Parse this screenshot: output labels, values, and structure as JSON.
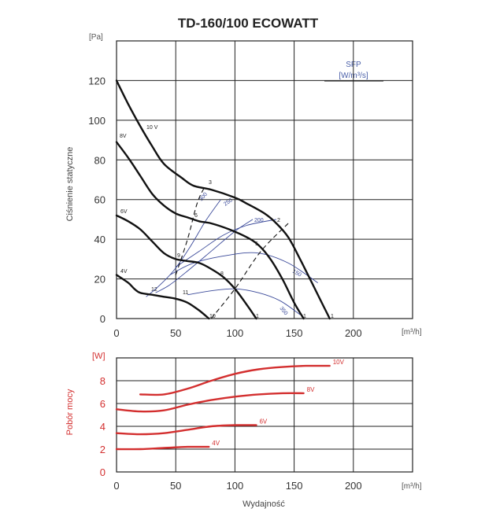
{
  "title": "TD-160/100 ECOWATT",
  "chart_data": [
    {
      "type": "line",
      "name": "pressure",
      "ylabel": "Ciśnienie statyczne",
      "yunit": "[Pa]",
      "xunit": "[m³/h]",
      "xlim": [
        0,
        250
      ],
      "ylim": [
        0,
        140
      ],
      "xticks": [
        0,
        50,
        100,
        150,
        200
      ],
      "yticks": [
        0,
        20,
        40,
        60,
        80,
        100,
        120
      ],
      "sfp_label": "SFP",
      "sfp_unit": "[W/m³/s]",
      "series": [
        {
          "name": "10 V",
          "x": [
            0,
            10,
            20,
            30,
            40,
            55,
            65,
            80,
            100,
            110,
            125,
            135,
            145,
            155,
            165,
            175,
            180
          ],
          "y": [
            120,
            108,
            97,
            87,
            78,
            71,
            67,
            65,
            61,
            58,
            53,
            48,
            41,
            30,
            18,
            6,
            0
          ]
        },
        {
          "name": "8V",
          "x": [
            0,
            10,
            20,
            30,
            40,
            50,
            60,
            70,
            80,
            95,
            110,
            120,
            130,
            140,
            150,
            158
          ],
          "y": [
            89,
            81,
            72,
            63,
            57,
            53,
            51,
            49,
            48,
            45,
            41,
            37,
            30,
            20,
            8,
            0
          ]
        },
        {
          "name": "6V",
          "x": [
            0,
            10,
            20,
            30,
            40,
            50,
            60,
            70,
            80,
            90,
            100,
            110,
            118
          ],
          "y": [
            52,
            49,
            45,
            39,
            33,
            30,
            29,
            28,
            25,
            21,
            15,
            7,
            0
          ]
        },
        {
          "name": "4V",
          "x": [
            0,
            10,
            15,
            20,
            30,
            40,
            50,
            60,
            70,
            78
          ],
          "y": [
            22,
            18,
            15,
            13,
            12,
            11,
            10,
            8,
            4,
            0
          ]
        }
      ],
      "labels": {
        "curve_10v": "10 V",
        "curve_8v": "8V",
        "curve_6v": "6V",
        "curve_4v": "4V",
        "point_10v_1": "1",
        "point_10v_2": "2",
        "point_10v_3": "3",
        "point_8v_1": "1",
        "point_8v_5": "5",
        "point_8v_6": "6",
        "point_6v_1": "1",
        "point_6v_8": "8",
        "point_6v_9": "9",
        "point_4v_10": "10",
        "point_4v_11": "11",
        "point_4v_12": "12",
        "sfp_300": "300",
        "sfp_250": "250",
        "sfp_200": "200",
        "sfp_150": "150",
        "sfp_350": "350"
      }
    },
    {
      "type": "line",
      "name": "power",
      "ylabel": "Pobór mocy",
      "yunit": "[W]",
      "xunit": "[m³/h]",
      "xlabel": "Wydajność",
      "xlim": [
        0,
        250
      ],
      "ylim": [
        0,
        10
      ],
      "xticks": [
        0,
        50,
        100,
        150,
        200
      ],
      "yticks": [
        0,
        2,
        4,
        6,
        8
      ],
      "series": [
        {
          "name": "10V",
          "x": [
            20,
            40,
            60,
            80,
            100,
            120,
            140,
            160,
            180
          ],
          "y": [
            6.8,
            6.8,
            7.3,
            8.0,
            8.6,
            9.0,
            9.2,
            9.3,
            9.3
          ]
        },
        {
          "name": "8V",
          "x": [
            0,
            20,
            40,
            60,
            80,
            100,
            120,
            140,
            158
          ],
          "y": [
            5.5,
            5.3,
            5.4,
            5.9,
            6.3,
            6.6,
            6.8,
            6.9,
            6.9
          ]
        },
        {
          "name": "6V",
          "x": [
            0,
            20,
            40,
            60,
            80,
            100,
            118
          ],
          "y": [
            3.4,
            3.3,
            3.4,
            3.7,
            4.0,
            4.1,
            4.1
          ]
        },
        {
          "name": "4V",
          "x": [
            0,
            20,
            40,
            60,
            78
          ],
          "y": [
            2.0,
            2.0,
            2.1,
            2.2,
            2.2
          ]
        }
      ]
    }
  ]
}
